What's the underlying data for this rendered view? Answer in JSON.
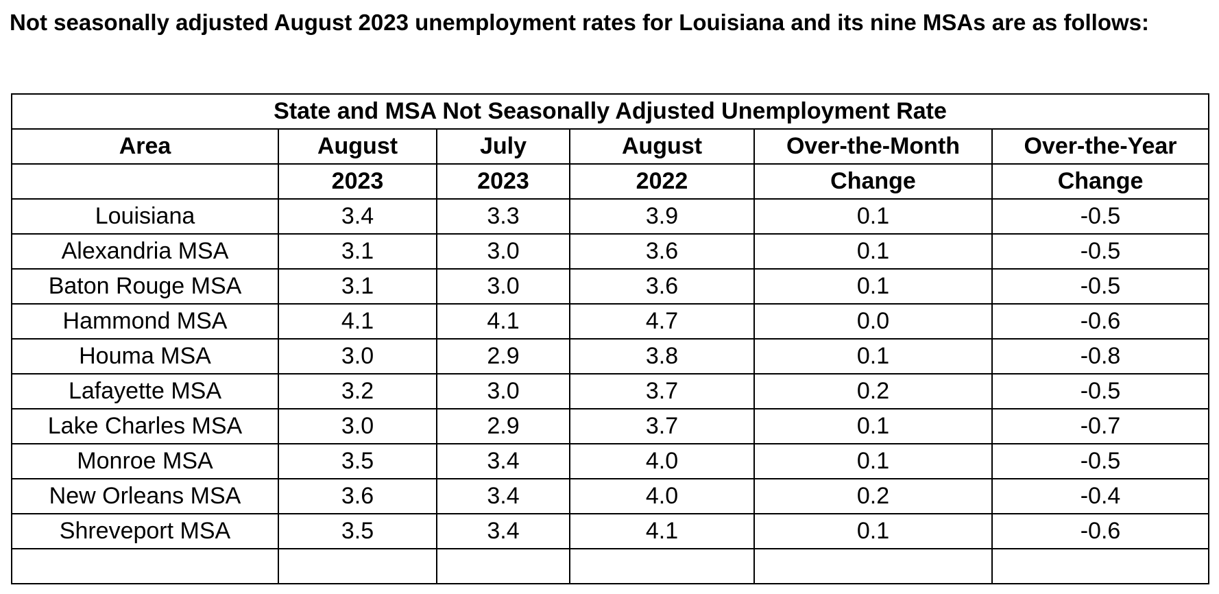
{
  "intro_text": "Not seasonally adjusted August 2023 unemployment rates for Louisiana and its nine MSAs are as follows:",
  "table": {
    "title": "State and MSA Not Seasonally Adjusted Unemployment Rate",
    "header_row1": [
      "Area",
      "August",
      "July",
      "August",
      "Over-the-Month",
      "Over-the-Year"
    ],
    "header_row2": [
      "",
      "2023",
      "2023",
      "2022",
      "Change",
      "Change"
    ],
    "rows": [
      [
        "Louisiana",
        "3.4",
        "3.3",
        "3.9",
        "0.1",
        "-0.5"
      ],
      [
        "Alexandria MSA",
        "3.1",
        "3.0",
        "3.6",
        "0.1",
        "-0.5"
      ],
      [
        "Baton Rouge MSA",
        "3.1",
        "3.0",
        "3.6",
        "0.1",
        "-0.5"
      ],
      [
        "Hammond MSA",
        "4.1",
        "4.1",
        "4.7",
        "0.0",
        "-0.6"
      ],
      [
        "Houma MSA",
        "3.0",
        "2.9",
        "3.8",
        "0.1",
        "-0.8"
      ],
      [
        "Lafayette MSA",
        "3.2",
        "3.0",
        "3.7",
        "0.2",
        "-0.5"
      ],
      [
        "Lake Charles MSA",
        "3.0",
        "2.9",
        "3.7",
        "0.1",
        "-0.7"
      ],
      [
        "Monroe MSA",
        "3.5",
        "3.4",
        "4.0",
        "0.1",
        "-0.5"
      ],
      [
        "New Orleans MSA",
        "3.6",
        "3.4",
        "4.0",
        "0.2",
        "-0.4"
      ],
      [
        "Shreveport MSA",
        "3.5",
        "3.4",
        "4.1",
        "0.1",
        "-0.6"
      ],
      [
        "",
        "",
        "",
        "",
        "",
        ""
      ]
    ]
  }
}
